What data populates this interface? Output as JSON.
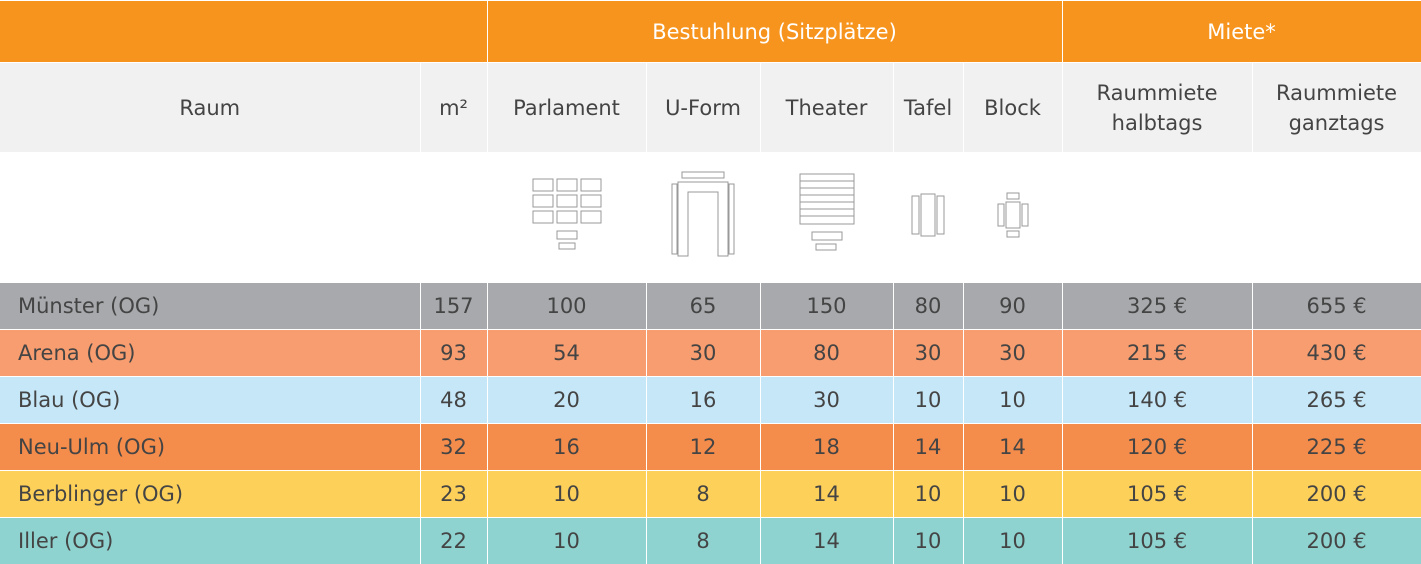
{
  "table": {
    "groups": [
      "Bestuhlung (Sitzplätze)",
      "Miete*"
    ],
    "columns": [
      "Raum",
      "m²",
      "Parlament",
      "U-Form",
      "Theater",
      "Tafel",
      "Block",
      "Raummiete halbtags",
      "Raummiete ganztags"
    ],
    "rows": [
      [
        "Münster (OG)",
        "157",
        "100",
        "65",
        "150",
        "80",
        "90",
        "325 €",
        "655 €"
      ],
      [
        "Arena (OG)",
        "93",
        "54",
        "30",
        "80",
        "30",
        "30",
        "215 €",
        "430 €"
      ],
      [
        "Blau (OG)",
        "48",
        "20",
        "16",
        "30",
        "10",
        "10",
        "140 €",
        "265 €"
      ],
      [
        "Neu-Ulm (OG)",
        "32",
        "16",
        "12",
        "18",
        "14",
        "14",
        "120 €",
        "225 €"
      ],
      [
        "Berblinger (OG)",
        "23",
        "10",
        "8",
        "14",
        "10",
        "10",
        "105 €",
        "200 €"
      ],
      [
        "Iller (OG)",
        "22",
        "10",
        "8",
        "14",
        "10",
        "10",
        "105 €",
        "200 €"
      ]
    ]
  }
}
